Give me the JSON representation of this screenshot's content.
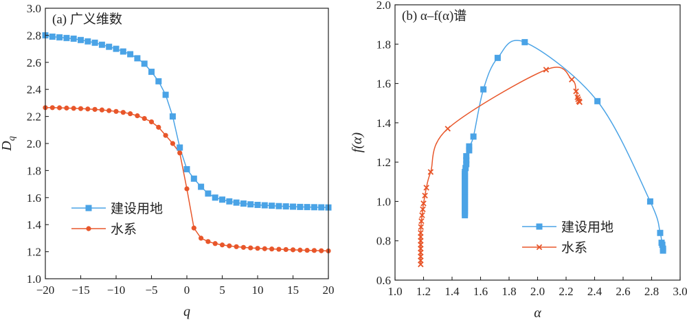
{
  "colors": {
    "land": "#4aa3e6",
    "water": "#e8562a",
    "axis": "#222222"
  },
  "chart_data": [
    {
      "type": "line",
      "title": "(a) 广义维数",
      "xlabel": "q",
      "ylabel": "D",
      "ylabel_sub": "q",
      "xlim": [
        -20,
        20
      ],
      "ylim": [
        1.0,
        3.0
      ],
      "xticks": [
        -20,
        -15,
        -10,
        -5,
        0,
        5,
        10,
        15,
        20
      ],
      "xtick_labels": [
        "−20",
        "−15",
        "−10",
        "−5",
        "0",
        "5",
        "10",
        "15",
        "20"
      ],
      "yticks": [
        1.0,
        1.2,
        1.4,
        1.6,
        1.8,
        2.0,
        2.2,
        2.4,
        2.6,
        2.8,
        3.0
      ],
      "ytick_labels": [
        "1.0",
        "1.2",
        "1.4",
        "1.6",
        "1.8",
        "2.0",
        "2.2",
        "2.4",
        "2.6",
        "2.8",
        "3.0"
      ],
      "legend_position": "lower-left",
      "series": [
        {
          "name": "建设用地",
          "color_key": "land",
          "marker": "square",
          "x": [
            -20,
            -19,
            -18,
            -17,
            -16,
            -15,
            -14,
            -13,
            -12,
            -11,
            -10,
            -9,
            -8,
            -7,
            -6,
            -5,
            -4,
            -3,
            -2,
            -1,
            0,
            1,
            2,
            3,
            4,
            5,
            6,
            7,
            8,
            9,
            10,
            11,
            12,
            13,
            14,
            15,
            16,
            17,
            18,
            19,
            20
          ],
          "y": [
            2.8,
            2.79,
            2.785,
            2.78,
            2.775,
            2.765,
            2.755,
            2.745,
            2.73,
            2.715,
            2.7,
            2.68,
            2.66,
            2.63,
            2.59,
            2.53,
            2.46,
            2.36,
            2.2,
            1.97,
            1.81,
            1.74,
            1.68,
            1.63,
            1.6,
            1.585,
            1.572,
            1.563,
            1.556,
            1.55,
            1.546,
            1.543,
            1.54,
            1.537,
            1.535,
            1.533,
            1.531,
            1.53,
            1.529,
            1.528,
            1.527
          ]
        },
        {
          "name": "水系",
          "color_key": "water",
          "marker": "circle",
          "x": [
            -20,
            -19,
            -18,
            -17,
            -16,
            -15,
            -14,
            -13,
            -12,
            -11,
            -10,
            -9,
            -8,
            -7,
            -6,
            -5,
            -4,
            -3,
            -2,
            -1,
            0,
            1,
            2,
            3,
            4,
            5,
            6,
            7,
            8,
            9,
            10,
            11,
            12,
            13,
            14,
            15,
            16,
            17,
            18,
            19,
            20
          ],
          "y": [
            2.265,
            2.265,
            2.264,
            2.262,
            2.26,
            2.258,
            2.255,
            2.252,
            2.248,
            2.243,
            2.237,
            2.23,
            2.22,
            2.205,
            2.185,
            2.16,
            2.12,
            2.06,
            2.0,
            1.93,
            1.665,
            1.375,
            1.3,
            1.275,
            1.26,
            1.25,
            1.243,
            1.237,
            1.232,
            1.228,
            1.225,
            1.222,
            1.22,
            1.218,
            1.216,
            1.214,
            1.212,
            1.21,
            1.209,
            1.207,
            1.206
          ]
        }
      ]
    },
    {
      "type": "line",
      "title": "(b) α–f(α)谱",
      "xlabel": "α",
      "ylabel": "f(α)",
      "xlim": [
        1.0,
        3.0
      ],
      "ylim": [
        0.6,
        2.0
      ],
      "xticks": [
        1.0,
        1.2,
        1.4,
        1.6,
        1.8,
        2.0,
        2.2,
        2.4,
        2.6,
        2.8,
        3.0
      ],
      "xtick_labels": [
        "1.0",
        "1.2",
        "1.4",
        "1.6",
        "1.8",
        "2.0",
        "2.2",
        "2.4",
        "2.6",
        "2.8",
        "3.0"
      ],
      "yticks": [
        0.6,
        0.8,
        1.0,
        1.2,
        1.4,
        1.6,
        1.8,
        2.0
      ],
      "ytick_labels": [
        "0.6",
        "0.8",
        "1.0",
        "1.2",
        "1.4",
        "1.6",
        "1.8",
        "2.0"
      ],
      "legend_position": "lower-right",
      "series": [
        {
          "name": "建设用地",
          "color_key": "land",
          "marker": "square",
          "x": [
            1.49,
            1.49,
            1.49,
            1.49,
            1.49,
            1.49,
            1.49,
            1.49,
            1.49,
            1.49,
            1.49,
            1.49,
            1.49,
            1.49,
            1.49,
            1.49,
            1.49,
            1.49,
            1.49,
            1.49,
            1.49,
            1.49,
            1.49,
            1.495,
            1.5,
            1.5,
            1.5,
            1.52,
            1.52,
            1.55,
            1.62,
            1.72,
            1.91,
            2.42,
            2.79,
            2.86,
            2.87,
            2.875,
            2.88,
            2.88
          ],
          "y": [
            0.93,
            0.94,
            0.95,
            0.96,
            0.97,
            0.98,
            0.99,
            1.0,
            1.01,
            1.02,
            1.03,
            1.04,
            1.05,
            1.06,
            1.07,
            1.08,
            1.09,
            1.1,
            1.11,
            1.12,
            1.13,
            1.14,
            1.15,
            1.17,
            1.19,
            1.21,
            1.23,
            1.26,
            1.28,
            1.33,
            1.57,
            1.73,
            1.81,
            1.51,
            1.0,
            0.84,
            0.79,
            0.78,
            0.76,
            0.75
          ]
        },
        {
          "name": "水系",
          "color_key": "water",
          "marker": "cross",
          "x": [
            1.18,
            1.18,
            1.18,
            1.18,
            1.18,
            1.18,
            1.18,
            1.18,
            1.18,
            1.182,
            1.185,
            1.19,
            1.195,
            1.2,
            1.21,
            1.22,
            1.25,
            1.37,
            2.06,
            2.24,
            2.27,
            2.28,
            2.285,
            2.29,
            2.295
          ],
          "y": [
            0.68,
            0.7,
            0.72,
            0.74,
            0.76,
            0.78,
            0.8,
            0.82,
            0.84,
            0.87,
            0.9,
            0.93,
            0.96,
            0.99,
            1.03,
            1.07,
            1.15,
            1.37,
            1.67,
            1.62,
            1.56,
            1.53,
            1.52,
            1.51,
            1.505
          ]
        }
      ]
    }
  ]
}
